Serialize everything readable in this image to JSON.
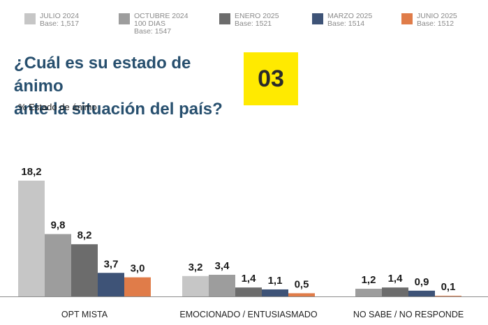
{
  "legend": [
    {
      "lines": [
        "JULIO 2024",
        "Base: 1,517"
      ],
      "color": "#c6c6c6"
    },
    {
      "lines": [
        "OCTUBRE 2024",
        "100 DIAS",
        "Base: 1547"
      ],
      "color": "#9d9d9d"
    },
    {
      "lines": [
        "ENERO 2025",
        "Base: 1521"
      ],
      "color": "#6c6c6c"
    },
    {
      "lines": [
        "MARZO 2025",
        "Base: 1514"
      ],
      "color": "#3e5377"
    },
    {
      "lines": [
        "JUNIO 2025",
        "Base: 1512"
      ],
      "color": "#e07c49"
    }
  ],
  "header": {
    "title_line1": "¿Cuál es su estado de ánimo",
    "title_line2": "ante la situación del país?",
    "badge": "03",
    "subtitle": "% Estado de ánimo"
  },
  "chart_data": {
    "type": "bar",
    "title": "¿Cuál es su estado de ánimo ante la situación del país?",
    "ylabel": "% Estado de ánimo",
    "xlabel": "",
    "ylim": [
      0,
      18.2
    ],
    "categories": [
      "OPT MISTA",
      "EMOCIONADO / ENTUSIASMADO",
      "NO SABE / NO RESPONDE"
    ],
    "series": [
      {
        "name": "JULIO 2024",
        "values": [
          18.2,
          3.2,
          null
        ],
        "labels": [
          "18,2",
          "3,2",
          ""
        ]
      },
      {
        "name": "OCTUBRE 2024",
        "values": [
          9.8,
          3.4,
          1.2
        ],
        "labels": [
          "9,8",
          "3,4",
          "1,2"
        ]
      },
      {
        "name": "ENERO 2025",
        "values": [
          8.2,
          1.4,
          1.4
        ],
        "labels": [
          "8,2",
          "1,4",
          "1,4"
        ]
      },
      {
        "name": "MARZO 2025",
        "values": [
          3.7,
          1.1,
          0.9
        ],
        "labels": [
          "3,7",
          "1,1",
          "0,9"
        ]
      },
      {
        "name": "JUNIO 2025",
        "values": [
          3.0,
          0.5,
          0.1
        ],
        "labels": [
          "3,0",
          "0,5",
          "0,1"
        ]
      }
    ]
  }
}
